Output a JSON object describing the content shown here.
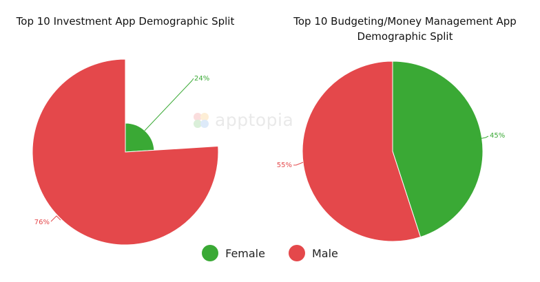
{
  "watermark": "apptopia",
  "legend": [
    {
      "label": "Female",
      "color": "#3aa935"
    },
    {
      "label": "Male",
      "color": "#e4484b"
    }
  ],
  "chart_data": [
    {
      "type": "pie",
      "title": "Top 10 Investment App Demographic Split",
      "categories": [
        "Female",
        "Male"
      ],
      "values": [
        24,
        76
      ],
      "labels": [
        "24%",
        "76%"
      ],
      "colors": [
        "#3aa935",
        "#e4484b"
      ]
    },
    {
      "type": "pie",
      "title": "Top 10 Budgeting/Money Management App Demographic Split",
      "categories": [
        "Female",
        "Male"
      ],
      "values": [
        45,
        55
      ],
      "labels": [
        "45%",
        "55%"
      ],
      "colors": [
        "#3aa935",
        "#e4484b"
      ]
    }
  ]
}
